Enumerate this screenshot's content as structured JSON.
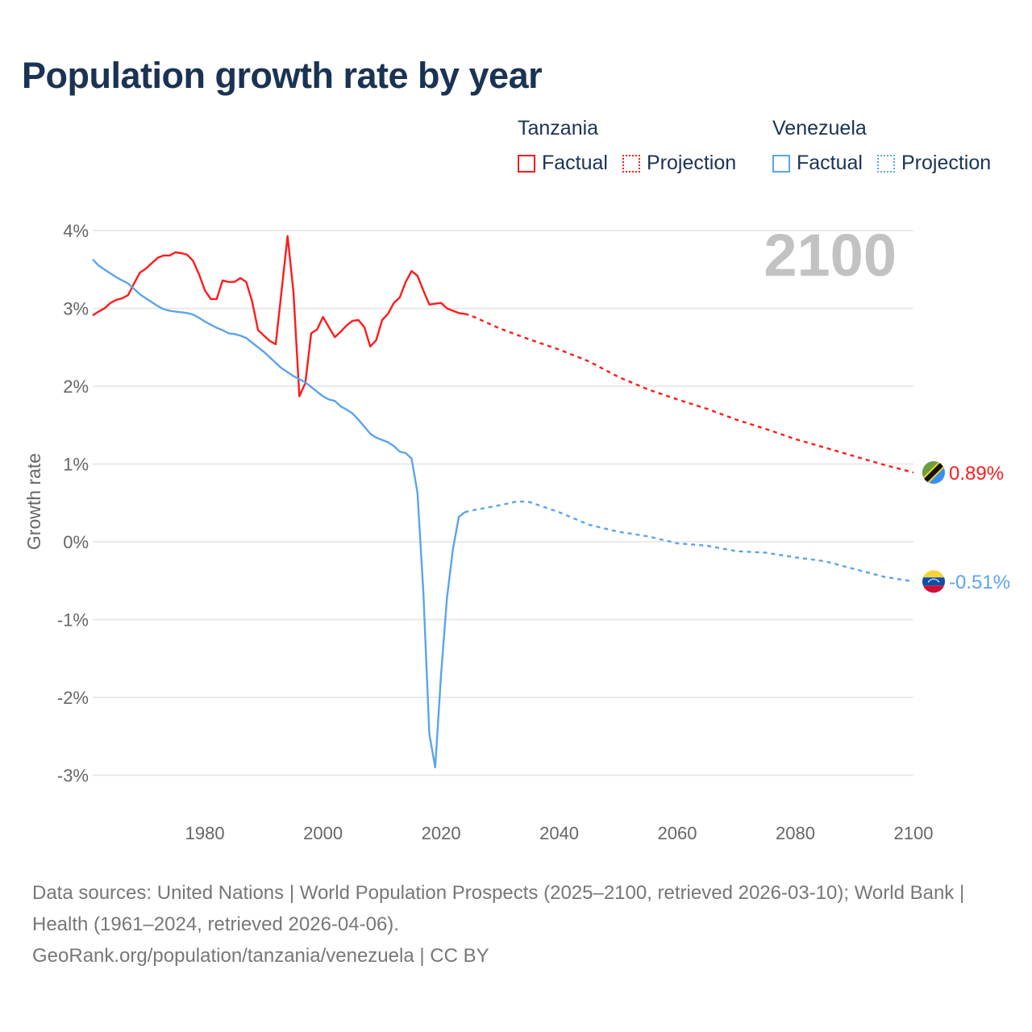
{
  "title": "Population growth rate by year",
  "legend": {
    "groups": [
      {
        "name": "Tanzania",
        "factual": "Factual",
        "projection": "Projection",
        "color": "#ff1a1a"
      },
      {
        "name": "Venezuela",
        "factual": "Factual",
        "projection": "Projection",
        "color": "#5ca4ea"
      }
    ]
  },
  "current_year": "2100",
  "footer": {
    "sources": "Data sources: United Nations | World Population Prospects (2025–2100, retrieved 2026-03-10); World Bank | Health (1961–2024, retrieved 2026-04-06).",
    "credit": "GeoRank.org/population/tanzania/venezuela | CC BY"
  },
  "chart_data": {
    "type": "line",
    "title": "Population growth rate by year",
    "xlabel": "",
    "ylabel": "Growth rate",
    "xlim": [
      1961,
      2100
    ],
    "ylim": [
      -3.5,
      4.2
    ],
    "x_ticks": [
      "1980",
      "2000",
      "2020",
      "2040",
      "2060",
      "2080",
      "2100"
    ],
    "x_tick_values": [
      1980,
      2000,
      2020,
      2040,
      2060,
      2080,
      2100
    ],
    "y_ticks": [
      "4%",
      "3%",
      "2%",
      "1%",
      "0%",
      "-1%",
      "-2%",
      "-3%"
    ],
    "y_tick_values": [
      4,
      3,
      2,
      1,
      0,
      -1,
      -2,
      -3
    ],
    "grid": true,
    "legend_position": "top-right",
    "series": [
      {
        "name": "Tanzania Factual",
        "country": "Tanzania",
        "kind": "factual",
        "color": "#ff1a1a",
        "start_year": 1961,
        "values": [
          2.91,
          2.96,
          3.0,
          3.07,
          3.11,
          3.13,
          3.17,
          3.32,
          3.46,
          3.51,
          3.58,
          3.65,
          3.68,
          3.68,
          3.72,
          3.71,
          3.69,
          3.61,
          3.44,
          3.23,
          3.12,
          3.12,
          3.36,
          3.34,
          3.34,
          3.39,
          3.34,
          3.09,
          2.72,
          2.65,
          2.58,
          2.54,
          3.24,
          3.93,
          3.21,
          1.87,
          2.04,
          2.68,
          2.73,
          2.89,
          2.76,
          2.63,
          2.7,
          2.78,
          2.84,
          2.85,
          2.76,
          2.51,
          2.59,
          2.85,
          2.93,
          3.07,
          3.14,
          3.34,
          3.48,
          3.42,
          3.23,
          3.05,
          3.06,
          3.07,
          3.0,
          2.97,
          2.94,
          2.93
        ]
      },
      {
        "name": "Tanzania Projection",
        "country": "Tanzania",
        "kind": "projection",
        "color": "#ff1a1a",
        "x": [
          2024,
          2025,
          2030,
          2035,
          2040,
          2045,
          2050,
          2055,
          2060,
          2065,
          2070,
          2075,
          2080,
          2085,
          2090,
          2095,
          2100
        ],
        "values": [
          2.93,
          2.91,
          2.74,
          2.6,
          2.47,
          2.32,
          2.12,
          1.96,
          1.83,
          1.71,
          1.57,
          1.45,
          1.32,
          1.21,
          1.1,
          0.99,
          0.89
        ]
      },
      {
        "name": "Venezuela Factual",
        "country": "Venezuela",
        "kind": "factual",
        "color": "#5ca4ea",
        "start_year": 1961,
        "values": [
          3.63,
          3.55,
          3.5,
          3.45,
          3.4,
          3.36,
          3.32,
          3.25,
          3.18,
          3.13,
          3.08,
          3.03,
          2.99,
          2.97,
          2.96,
          2.95,
          2.94,
          2.92,
          2.88,
          2.83,
          2.79,
          2.75,
          2.72,
          2.68,
          2.67,
          2.65,
          2.62,
          2.56,
          2.5,
          2.44,
          2.37,
          2.3,
          2.23,
          2.18,
          2.13,
          2.09,
          2.05,
          1.99,
          1.93,
          1.87,
          1.83,
          1.81,
          1.74,
          1.7,
          1.65,
          1.57,
          1.48,
          1.39,
          1.34,
          1.31,
          1.28,
          1.23,
          1.16,
          1.14,
          1.07,
          0.63,
          -0.65,
          -2.47,
          -2.9,
          -1.7,
          -0.72,
          -0.1,
          0.32,
          0.38
        ]
      },
      {
        "name": "Venezuela Projection",
        "country": "Venezuela",
        "kind": "projection",
        "color": "#5ca4ea",
        "x": [
          2024,
          2025,
          2030,
          2033,
          2035,
          2040,
          2045,
          2050,
          2055,
          2060,
          2065,
          2070,
          2075,
          2080,
          2085,
          2090,
          2095,
          2100
        ],
        "values": [
          0.38,
          0.4,
          0.47,
          0.52,
          0.51,
          0.38,
          0.22,
          0.13,
          0.07,
          -0.02,
          -0.05,
          -0.12,
          -0.14,
          -0.2,
          -0.25,
          -0.35,
          -0.45,
          -0.51
        ]
      }
    ],
    "end_labels": [
      {
        "country": "Tanzania",
        "text": "0.89%",
        "value": 0.89,
        "flag": "tanzania-flag"
      },
      {
        "country": "Venezuela",
        "text": "-0.51%",
        "value": -0.51,
        "flag": "venezuela-flag"
      }
    ]
  }
}
